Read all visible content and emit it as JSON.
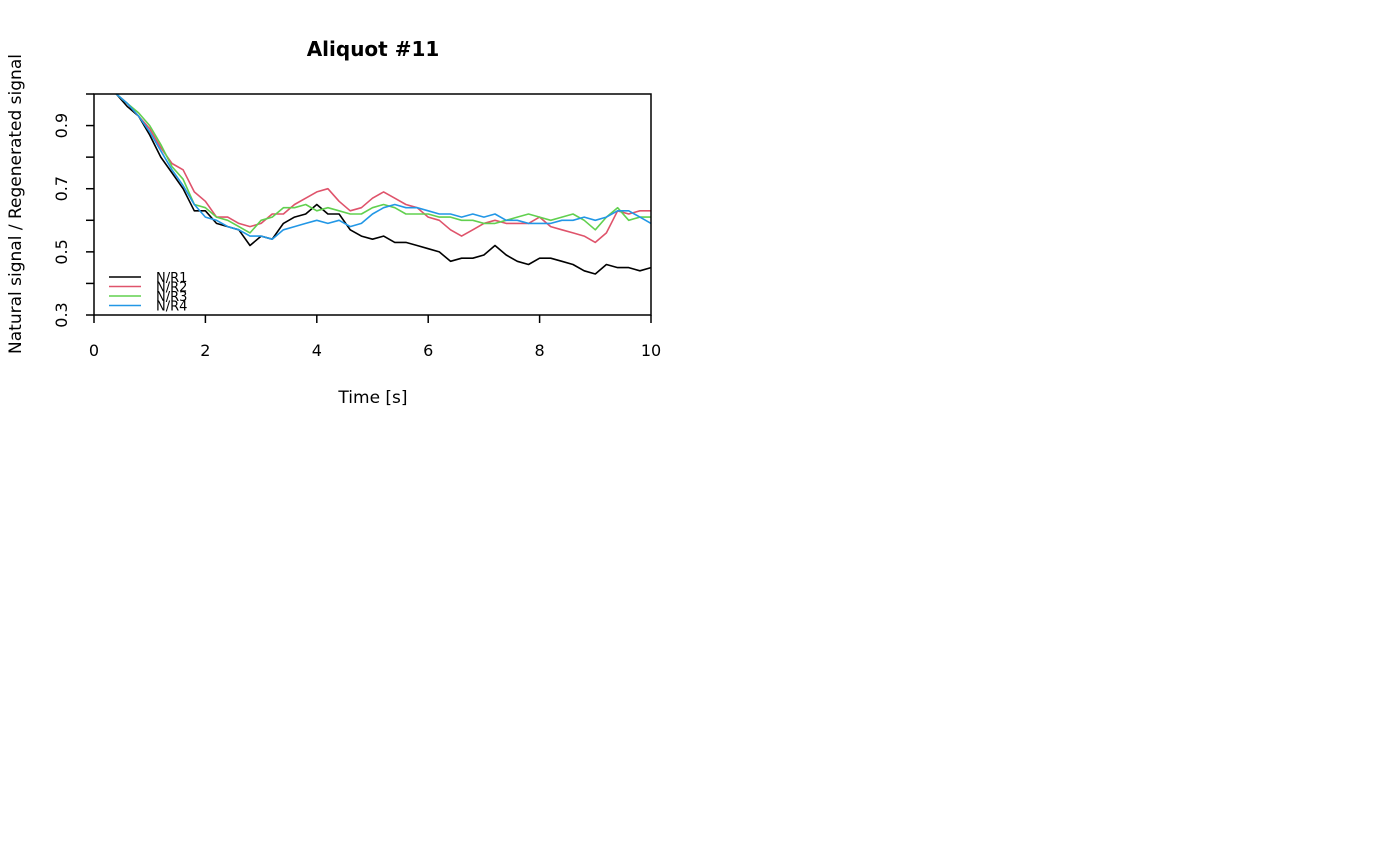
{
  "chart_data": {
    "type": "line",
    "title": "Aliquot #11",
    "xlabel": "Time [s]",
    "ylabel": "Natural signal / Regenerated signal",
    "xlim": [
      0,
      10
    ],
    "ylim": [
      0.3,
      1.0
    ],
    "xticks": [
      0,
      2,
      4,
      6,
      8,
      10
    ],
    "xtick_labels": [
      "0",
      "2",
      "4",
      "6",
      "8",
      "10"
    ],
    "yticks": [
      0.3,
      0.4,
      0.5,
      0.6,
      0.7,
      0.8,
      0.9,
      1.0
    ],
    "ytick_labels": [
      "0.3",
      "",
      "0.5",
      "",
      "0.7",
      "",
      "0.9",
      ""
    ],
    "reference_line": {
      "y": 1.0,
      "style": "dashed"
    },
    "grid": false,
    "legend_position": "bottom-left",
    "x": [
      0.4,
      0.6,
      0.8,
      1.0,
      1.2,
      1.4,
      1.6,
      1.8,
      2.0,
      2.2,
      2.4,
      2.6,
      2.8,
      3.0,
      3.2,
      3.4,
      3.6,
      3.8,
      4.0,
      4.2,
      4.4,
      4.6,
      4.8,
      5.0,
      5.2,
      5.4,
      5.6,
      5.8,
      6.0,
      6.2,
      6.4,
      6.6,
      6.8,
      7.0,
      7.2,
      7.4,
      7.6,
      7.8,
      8.0,
      8.2,
      8.4,
      8.6,
      8.8,
      9.0,
      9.2,
      9.4,
      9.6,
      9.8,
      10.0
    ],
    "series": [
      {
        "name": "N/R1",
        "color": "#000000",
        "values": [
          1.0,
          0.96,
          0.93,
          0.87,
          0.8,
          0.75,
          0.7,
          0.63,
          0.63,
          0.59,
          0.58,
          0.57,
          0.52,
          0.55,
          0.54,
          0.59,
          0.61,
          0.62,
          0.65,
          0.62,
          0.62,
          0.57,
          0.55,
          0.54,
          0.55,
          0.53,
          0.53,
          0.52,
          0.51,
          0.5,
          0.47,
          0.48,
          0.48,
          0.49,
          0.52,
          0.49,
          0.47,
          0.46,
          0.48,
          0.48,
          0.47,
          0.46,
          0.44,
          0.43,
          0.46,
          0.45,
          0.45,
          0.44,
          0.45
        ]
      },
      {
        "name": "N/R2",
        "color": "#df536b",
        "values": [
          1.0,
          0.97,
          0.93,
          0.89,
          0.83,
          0.78,
          0.76,
          0.69,
          0.66,
          0.61,
          0.61,
          0.59,
          0.58,
          0.59,
          0.62,
          0.62,
          0.65,
          0.67,
          0.69,
          0.7,
          0.66,
          0.63,
          0.64,
          0.67,
          0.69,
          0.67,
          0.65,
          0.64,
          0.61,
          0.6,
          0.57,
          0.55,
          0.57,
          0.59,
          0.6,
          0.59,
          0.59,
          0.59,
          0.61,
          0.58,
          0.57,
          0.56,
          0.55,
          0.53,
          0.56,
          0.63,
          0.62,
          0.63,
          0.63
        ]
      },
      {
        "name": "N/R3",
        "color": "#61d04f",
        "values": [
          1.0,
          0.97,
          0.94,
          0.9,
          0.84,
          0.77,
          0.73,
          0.65,
          0.64,
          0.61,
          0.6,
          0.58,
          0.56,
          0.6,
          0.61,
          0.64,
          0.64,
          0.65,
          0.63,
          0.64,
          0.63,
          0.62,
          0.62,
          0.64,
          0.65,
          0.64,
          0.62,
          0.62,
          0.62,
          0.61,
          0.61,
          0.6,
          0.6,
          0.59,
          0.59,
          0.6,
          0.61,
          0.62,
          0.61,
          0.6,
          0.61,
          0.62,
          0.6,
          0.57,
          0.61,
          0.64,
          0.6,
          0.61,
          0.61
        ]
      },
      {
        "name": "N/R4",
        "color": "#2297e6",
        "values": [
          1.0,
          0.97,
          0.93,
          0.88,
          0.82,
          0.76,
          0.71,
          0.65,
          0.61,
          0.6,
          0.58,
          0.57,
          0.55,
          0.55,
          0.54,
          0.57,
          0.58,
          0.59,
          0.6,
          0.59,
          0.6,
          0.58,
          0.59,
          0.62,
          0.64,
          0.65,
          0.64,
          0.64,
          0.63,
          0.62,
          0.62,
          0.61,
          0.62,
          0.61,
          0.62,
          0.6,
          0.6,
          0.59,
          0.59,
          0.59,
          0.6,
          0.6,
          0.61,
          0.6,
          0.61,
          0.63,
          0.63,
          0.61,
          0.59
        ]
      }
    ]
  }
}
